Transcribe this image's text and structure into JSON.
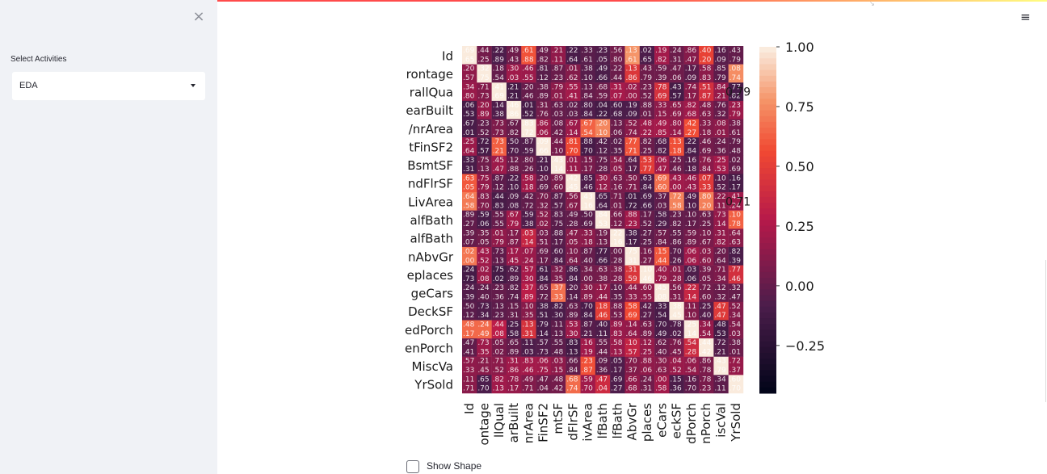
{
  "sidebar": {
    "close_symbol": "×",
    "select_label": "Select Activities",
    "select_value": "EDA"
  },
  "header": {
    "menu_symbol": "≡",
    "resize_symbol": "↘"
  },
  "main": {
    "show_shape_label": "Show Shape"
  },
  "colors": {
    "sidebar_bg": "#f0f2f6",
    "accent": "#ff4b4b",
    "heatmap_low": "#03051a",
    "heatmap_mid": "#b6194a",
    "heatmap_high": "#faebdd"
  },
  "chart_data": {
    "type": "heatmap",
    "title": "",
    "row_labels": [
      "Id",
      "rontage",
      "rallQua",
      "earBuilt",
      "/nrArea",
      "tFinSF2",
      "BsmtSF",
      "ndFlrSF",
      "LivArea",
      "alfBath",
      "alfBath",
      "nAbvGr",
      "eplaces",
      "geCars",
      "DeckSF",
      "edPorch",
      "enPorch",
      "MiscVa",
      "YrSold"
    ],
    "col_labels": [
      "Id",
      "ontage",
      "llQual",
      "arBuilt",
      "nrArea",
      "FinSF2",
      "mtSF",
      "dFlrSF",
      "ivArea",
      "lfBath",
      "lfBath",
      "AbvGr",
      "places",
      "eCars",
      "eckSF",
      "dPorch",
      "nPorch",
      "iscVal",
      "YrSold"
    ],
    "colorbar_ticks": [
      "1.00",
      "0.75",
      "0.50",
      "0.25",
      "0.00",
      "−0.25"
    ],
    "colorbar_range": [
      -0.45,
      1.0
    ],
    "annotations": [
      {
        "row": 2,
        "text": "0.79"
      },
      {
        "row": 8,
        "text": "0.71"
      }
    ]
  }
}
